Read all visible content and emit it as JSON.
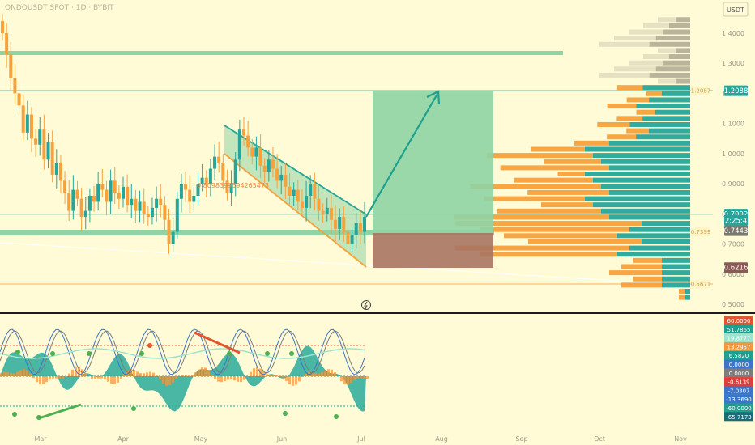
{
  "header": {
    "symbol_title": "ONDOUSDT SPOT · 1D · BYBIT",
    "currency": "USDT"
  },
  "colors": {
    "background": "#fffbd6",
    "teal": "#26a69a",
    "orange": "#f7a13b",
    "teal_zone": "#8fd4a5",
    "red_zone": "#a87462",
    "salmon": "#c07f5a",
    "dark": "#1c1c1c"
  },
  "chart_data": {
    "type": "candlestick",
    "x_ticks": [
      "Mar",
      "Apr",
      "May",
      "Jun",
      "Jul",
      "Aug",
      "Sep",
      "Oct",
      "Nov"
    ],
    "price_ticks": [
      "1.4000",
      "1.3000",
      "1.2000",
      "1.1000",
      "1.0000",
      "0.9000",
      "0.8000",
      "0.7000",
      "0.6000",
      "0.5000"
    ],
    "ylim": [
      0.48,
      1.46
    ],
    "series_close": [
      1.4,
      1.33,
      1.25,
      1.2,
      1.16,
      1.07,
      1.13,
      1.05,
      1.03,
      1.08,
      0.98,
      1.04,
      0.93,
      0.97,
      0.91,
      0.87,
      0.81,
      0.88,
      0.85,
      0.79,
      0.81,
      0.86,
      0.84,
      0.9,
      0.88,
      0.84,
      0.91,
      0.87,
      0.85,
      0.89,
      0.83,
      0.85,
      0.81,
      0.84,
      0.8,
      0.79,
      0.82,
      0.85,
      0.83,
      0.78,
      0.7,
      0.74,
      0.85,
      0.9,
      0.88,
      0.84,
      0.86,
      0.9,
      0.92,
      0.9,
      0.95,
      0.99,
      0.97,
      0.91,
      0.87,
      0.9,
      0.98,
      1.08,
      1.06,
      1.02,
      0.99,
      1.02,
      0.96,
      0.94,
      0.98,
      0.95,
      0.91,
      0.93,
      0.89,
      0.86,
      0.88,
      0.84,
      0.82,
      0.86,
      0.9,
      0.85,
      0.81,
      0.8,
      0.82,
      0.78,
      0.75,
      0.79,
      0.74,
      0.7,
      0.73,
      0.77,
      0.74,
      0.79
    ],
    "price_labels": [
      {
        "text": "1.2088",
        "value": 1.2088,
        "color": "#26a69a"
      },
      {
        "text": "0.7992",
        "value": 0.7992,
        "color": "#26a69a"
      },
      {
        "text": "12:25:45",
        "value": 0.7785,
        "color": "#26a69a"
      },
      {
        "text": "0.7443",
        "value": 0.7443,
        "color": "#7a776d"
      },
      {
        "text": "0.6216",
        "value": 0.6216,
        "color": "#8a5a55"
      }
    ],
    "volume_profile_labels": [
      {
        "text": "1.2087",
        "value": 1.2087
      },
      {
        "text": "0.7399",
        "value": 0.7399
      },
      {
        "text": "0.5671",
        "value": 0.5671
      }
    ],
    "annotation": "0.8098399594265473",
    "horizontal_levels": [
      1.328,
      1.2088,
      0.7992,
      0.742
    ],
    "position": {
      "entry": 0.7443,
      "target": 1.2088,
      "stop": 0.6216
    },
    "indicator_ticks": [
      {
        "text": "60.0000",
        "color": "#e4542e"
      },
      {
        "text": "51.7865",
        "color": "#1ea08f"
      },
      {
        "text": "19.8777",
        "color": "#9ee3cc"
      },
      {
        "text": "13.2957",
        "color": "#f6973b"
      },
      {
        "text": "6.5820",
        "color": "#1ea08f"
      },
      {
        "text": "0.0000",
        "color": "#3a76c8"
      },
      {
        "text": "0.0000",
        "color": "#7c7c7c"
      },
      {
        "text": "-0.6139",
        "color": "#e23c3c"
      },
      {
        "text": "-7.0307",
        "color": "#3a76c8"
      },
      {
        "text": "-13.3690",
        "color": "#3a76c8"
      },
      {
        "text": "-60.0000",
        "color": "#1ea08f"
      },
      {
        "text": "-65.7173",
        "color": "#1c6b75"
      }
    ]
  }
}
